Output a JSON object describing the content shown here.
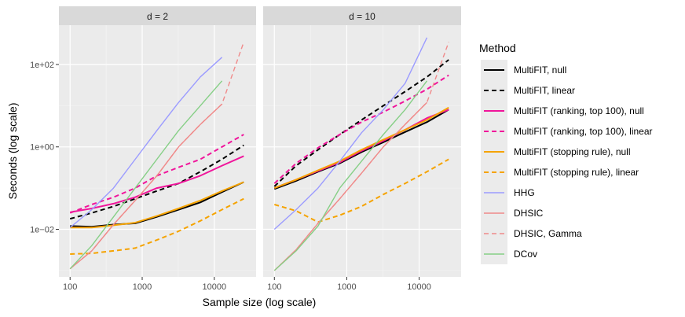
{
  "chart_data": {
    "type": "line",
    "xlabel": "Sample size (log scale)",
    "ylabel": "Seconds (log scale)",
    "x_ticks": [
      "100",
      "1000",
      "10000"
    ],
    "y_ticks": [
      "1e+02",
      "1e+00",
      "1e−02"
    ],
    "legend_title": "Method",
    "panels": [
      {
        "label": "d = 2"
      },
      {
        "label": "d = 10"
      }
    ],
    "series": [
      {
        "name": "MultiFIT, null",
        "color": "#000000",
        "dash": "solid",
        "width": 2,
        "panels": [
          [
            [
              100,
              0.012
            ],
            [
              200,
              0.0115
            ],
            [
              400,
              0.013
            ],
            [
              800,
              0.014
            ],
            [
              1600,
              0.02
            ],
            [
              3200,
              0.03
            ],
            [
              6400,
              0.045
            ],
            [
              12800,
              0.08
            ],
            [
              25600,
              0.14
            ]
          ],
          [
            [
              100,
              0.095
            ],
            [
              200,
              0.15
            ],
            [
              400,
              0.25
            ],
            [
              800,
              0.4
            ],
            [
              1600,
              0.75
            ],
            [
              3200,
              1.3
            ],
            [
              6400,
              2.3
            ],
            [
              12800,
              4
            ],
            [
              25600,
              8
            ]
          ]
        ]
      },
      {
        "name": "MultiFIT, linear",
        "color": "#000000",
        "dash": "dashed",
        "width": 2,
        "panels": [
          [
            [
              100,
              0.018
            ],
            [
              200,
              0.025
            ],
            [
              400,
              0.036
            ],
            [
              800,
              0.055
            ],
            [
              1600,
              0.085
            ],
            [
              3200,
              0.13
            ],
            [
              6400,
              0.25
            ],
            [
              12800,
              0.5
            ],
            [
              25600,
              1.1
            ]
          ],
          [
            [
              100,
              0.11
            ],
            [
              200,
              0.35
            ],
            [
              400,
              0.85
            ],
            [
              800,
              2
            ],
            [
              1600,
              4.5
            ],
            [
              3200,
              10
            ],
            [
              6400,
              22
            ],
            [
              12800,
              50
            ],
            [
              25600,
              130
            ]
          ]
        ]
      },
      {
        "name": "MultiFIT (ranking, top 100), null",
        "color": "#f0159b",
        "dash": "solid",
        "width": 2,
        "panels": [
          [
            [
              100,
              0.026
            ],
            [
              200,
              0.032
            ],
            [
              400,
              0.042
            ],
            [
              800,
              0.06
            ],
            [
              1600,
              0.1
            ],
            [
              3200,
              0.13
            ],
            [
              6400,
              0.2
            ],
            [
              12800,
              0.35
            ],
            [
              25600,
              0.6
            ]
          ],
          [
            [
              100,
              0.1
            ],
            [
              200,
              0.16
            ],
            [
              400,
              0.26
            ],
            [
              800,
              0.42
            ],
            [
              1600,
              0.8
            ],
            [
              3200,
              1.4
            ],
            [
              6400,
              2.6
            ],
            [
              12800,
              5
            ],
            [
              25600,
              8
            ]
          ]
        ]
      },
      {
        "name": "MultiFIT (ranking, top 100), linear",
        "color": "#f0159b",
        "dash": "dashed",
        "width": 2,
        "panels": [
          [
            [
              100,
              0.025
            ],
            [
              200,
              0.04
            ],
            [
              400,
              0.06
            ],
            [
              800,
              0.1
            ],
            [
              1600,
              0.2
            ],
            [
              3200,
              0.32
            ],
            [
              6400,
              0.5
            ],
            [
              12800,
              1
            ],
            [
              25600,
              2
            ]
          ],
          [
            [
              100,
              0.13
            ],
            [
              200,
              0.4
            ],
            [
              400,
              0.95
            ],
            [
              800,
              2
            ],
            [
              1600,
              4
            ],
            [
              3200,
              7
            ],
            [
              6400,
              13
            ],
            [
              12800,
              25
            ],
            [
              25600,
              55
            ]
          ]
        ]
      },
      {
        "name": "MultiFIT (stopping rule), null",
        "color": "#f5a300",
        "dash": "solid",
        "width": 2,
        "panels": [
          [
            [
              100,
              0.011
            ],
            [
              200,
              0.011
            ],
            [
              400,
              0.0125
            ],
            [
              800,
              0.0145
            ],
            [
              1600,
              0.021
            ],
            [
              3200,
              0.032
            ],
            [
              6400,
              0.05
            ],
            [
              12800,
              0.085
            ],
            [
              25600,
              0.14
            ]
          ],
          [
            [
              100,
              0.1
            ],
            [
              200,
              0.16
            ],
            [
              400,
              0.27
            ],
            [
              800,
              0.45
            ],
            [
              1600,
              0.85
            ],
            [
              3200,
              1.5
            ],
            [
              6400,
              2.6
            ],
            [
              12800,
              4.5
            ],
            [
              25600,
              9
            ]
          ]
        ]
      },
      {
        "name": "MultiFIT (stopping rule), linear",
        "color": "#f5a300",
        "dash": "dashed",
        "width": 2,
        "panels": [
          [
            [
              100,
              0.0025
            ],
            [
              200,
              0.0026
            ],
            [
              400,
              0.003
            ],
            [
              800,
              0.0035
            ],
            [
              1600,
              0.0055
            ],
            [
              3200,
              0.009
            ],
            [
              6400,
              0.016
            ],
            [
              12800,
              0.03
            ],
            [
              25600,
              0.055
            ]
          ],
          [
            [
              100,
              0.04
            ],
            [
              200,
              0.028
            ],
            [
              400,
              0.015
            ],
            [
              800,
              0.022
            ],
            [
              1600,
              0.036
            ],
            [
              3200,
              0.07
            ],
            [
              6400,
              0.13
            ],
            [
              12800,
              0.25
            ],
            [
              25600,
              0.5
            ]
          ]
        ]
      },
      {
        "name": "HHG",
        "color": "#9b9bff",
        "dash": "solid",
        "width": 1.4,
        "panels": [
          [
            [
              100,
              0.011
            ],
            [
              200,
              0.03
            ],
            [
              400,
              0.1
            ],
            [
              800,
              0.5
            ],
            [
              1600,
              2.5
            ],
            [
              3200,
              12
            ],
            [
              6400,
              50
            ],
            [
              12800,
              150
            ]
          ],
          [
            [
              100,
              0.01
            ],
            [
              200,
              0.03
            ],
            [
              400,
              0.1
            ],
            [
              800,
              0.45
            ],
            [
              1600,
              2.2
            ],
            [
              3200,
              8
            ],
            [
              6400,
              35
            ],
            [
              12800,
              450
            ]
          ]
        ]
      },
      {
        "name": "DHSIC",
        "color": "#f08a8a",
        "dash": "solid",
        "width": 1.4,
        "panels": [
          [
            [
              100,
              0.0011
            ],
            [
              200,
              0.003
            ],
            [
              400,
              0.013
            ],
            [
              800,
              0.05
            ],
            [
              1600,
              0.2
            ],
            [
              3200,
              1
            ],
            [
              6400,
              3.5
            ],
            [
              12800,
              11
            ]
          ],
          [
            [
              100,
              0.001
            ],
            [
              200,
              0.0032
            ],
            [
              400,
              0.014
            ],
            [
              800,
              0.055
            ],
            [
              1600,
              0.23
            ],
            [
              3200,
              1
            ],
            [
              6400,
              3.5
            ],
            [
              12800,
              12
            ]
          ]
        ]
      },
      {
        "name": "DHSIC, Gamma",
        "color": "#f08a8a",
        "dash": "dashed",
        "width": 1.4,
        "panels": [
          [
            [
              100,
              0.0011
            ],
            [
              200,
              0.003
            ],
            [
              400,
              0.013
            ],
            [
              800,
              0.05
            ],
            [
              1600,
              0.2
            ],
            [
              3200,
              1
            ],
            [
              6400,
              3.5
            ],
            [
              12800,
              11
            ],
            [
              25600,
              350
            ]
          ],
          [
            [
              100,
              0.001
            ],
            [
              200,
              0.0032
            ],
            [
              400,
              0.014
            ],
            [
              800,
              0.055
            ],
            [
              1600,
              0.23
            ],
            [
              3200,
              1
            ],
            [
              6400,
              3.5
            ],
            [
              12800,
              12
            ],
            [
              25600,
              350
            ]
          ]
        ]
      },
      {
        "name": "DCov",
        "color": "#86cf86",
        "dash": "solid",
        "width": 1.4,
        "panels": [
          [
            [
              100,
              0.0011
            ],
            [
              200,
              0.004
            ],
            [
              400,
              0.02
            ],
            [
              800,
              0.1
            ],
            [
              1600,
              0.5
            ],
            [
              3200,
              2.5
            ],
            [
              6400,
              10
            ],
            [
              12800,
              40
            ]
          ],
          [
            [
              100,
              0.001
            ],
            [
              200,
              0.003
            ],
            [
              400,
              0.012
            ],
            [
              800,
              0.1
            ],
            [
              1600,
              0.45
            ],
            [
              3200,
              2
            ],
            [
              6400,
              8
            ],
            [
              12800,
              40
            ]
          ]
        ]
      }
    ]
  }
}
